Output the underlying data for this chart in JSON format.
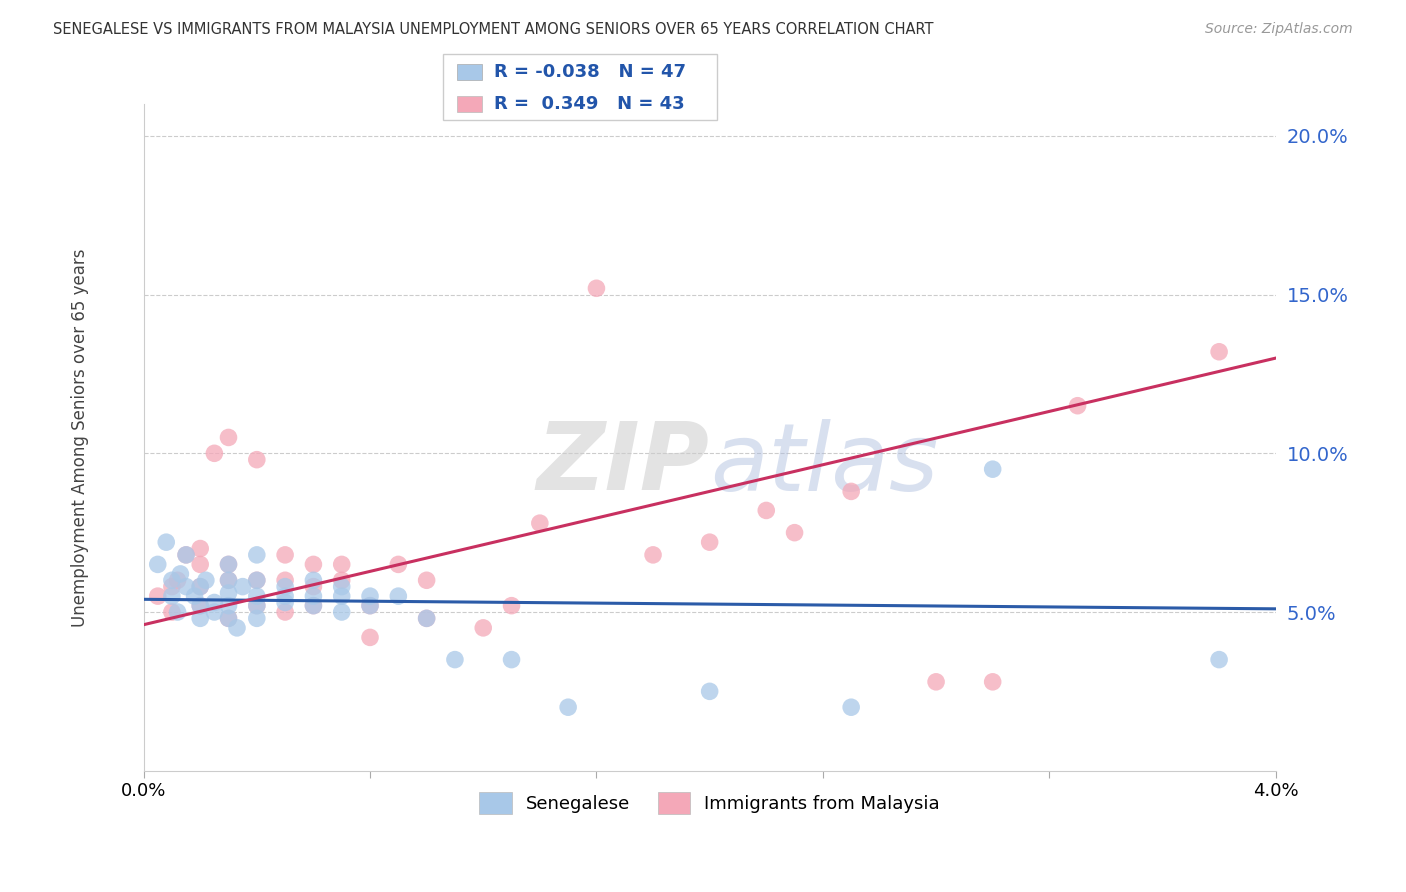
{
  "title": "SENEGALESE VS IMMIGRANTS FROM MALAYSIA UNEMPLOYMENT AMONG SENIORS OVER 65 YEARS CORRELATION CHART",
  "source": "Source: ZipAtlas.com",
  "ylabel": "Unemployment Among Seniors over 65 years",
  "x_min": 0.0,
  "x_max": 0.04,
  "y_min": 0.0,
  "y_max": 0.21,
  "ytick_labels": [
    "5.0%",
    "10.0%",
    "15.0%",
    "20.0%"
  ],
  "ytick_values": [
    0.05,
    0.1,
    0.15,
    0.2
  ],
  "legend_label1": "Senegalese",
  "legend_label2": "Immigrants from Malaysia",
  "R1": -0.038,
  "N1": 47,
  "R2": 0.349,
  "N2": 43,
  "color_blue": "#A8C8E8",
  "color_pink": "#F4A8B8",
  "line_color_blue": "#2B5BA8",
  "line_color_pink": "#C83060",
  "background_color": "#FFFFFF",
  "senegalese_x": [
    0.0005,
    0.0008,
    0.001,
    0.001,
    0.0012,
    0.0013,
    0.0015,
    0.0015,
    0.0018,
    0.002,
    0.002,
    0.002,
    0.0022,
    0.0025,
    0.0025,
    0.003,
    0.003,
    0.003,
    0.003,
    0.003,
    0.0033,
    0.0035,
    0.004,
    0.004,
    0.004,
    0.004,
    0.004,
    0.005,
    0.005,
    0.005,
    0.006,
    0.006,
    0.006,
    0.007,
    0.007,
    0.007,
    0.008,
    0.008,
    0.009,
    0.01,
    0.011,
    0.013,
    0.015,
    0.02,
    0.025,
    0.03,
    0.038
  ],
  "senegalese_y": [
    0.065,
    0.072,
    0.055,
    0.06,
    0.05,
    0.062,
    0.058,
    0.068,
    0.055,
    0.048,
    0.052,
    0.058,
    0.06,
    0.05,
    0.053,
    0.048,
    0.052,
    0.056,
    0.06,
    0.065,
    0.045,
    0.058,
    0.048,
    0.052,
    0.055,
    0.06,
    0.068,
    0.053,
    0.055,
    0.058,
    0.052,
    0.055,
    0.06,
    0.05,
    0.055,
    0.058,
    0.052,
    0.055,
    0.055,
    0.048,
    0.035,
    0.035,
    0.02,
    0.025,
    0.02,
    0.095,
    0.035
  ],
  "malaysia_x": [
    0.0005,
    0.001,
    0.001,
    0.0012,
    0.0015,
    0.002,
    0.002,
    0.002,
    0.002,
    0.0025,
    0.003,
    0.003,
    0.003,
    0.003,
    0.004,
    0.004,
    0.004,
    0.005,
    0.005,
    0.005,
    0.006,
    0.006,
    0.006,
    0.007,
    0.007,
    0.008,
    0.008,
    0.009,
    0.01,
    0.01,
    0.012,
    0.013,
    0.014,
    0.016,
    0.018,
    0.02,
    0.022,
    0.023,
    0.025,
    0.028,
    0.03,
    0.033,
    0.038
  ],
  "malaysia_y": [
    0.055,
    0.05,
    0.058,
    0.06,
    0.068,
    0.052,
    0.058,
    0.065,
    0.07,
    0.1,
    0.048,
    0.06,
    0.065,
    0.105,
    0.052,
    0.06,
    0.098,
    0.05,
    0.06,
    0.068,
    0.052,
    0.058,
    0.065,
    0.06,
    0.065,
    0.042,
    0.052,
    0.065,
    0.048,
    0.06,
    0.045,
    0.052,
    0.078,
    0.152,
    0.068,
    0.072,
    0.082,
    0.075,
    0.088,
    0.028,
    0.028,
    0.115,
    0.132
  ],
  "blue_line_y0": 0.054,
  "blue_line_y1": 0.051,
  "pink_line_y0": 0.046,
  "pink_line_y1": 0.13
}
